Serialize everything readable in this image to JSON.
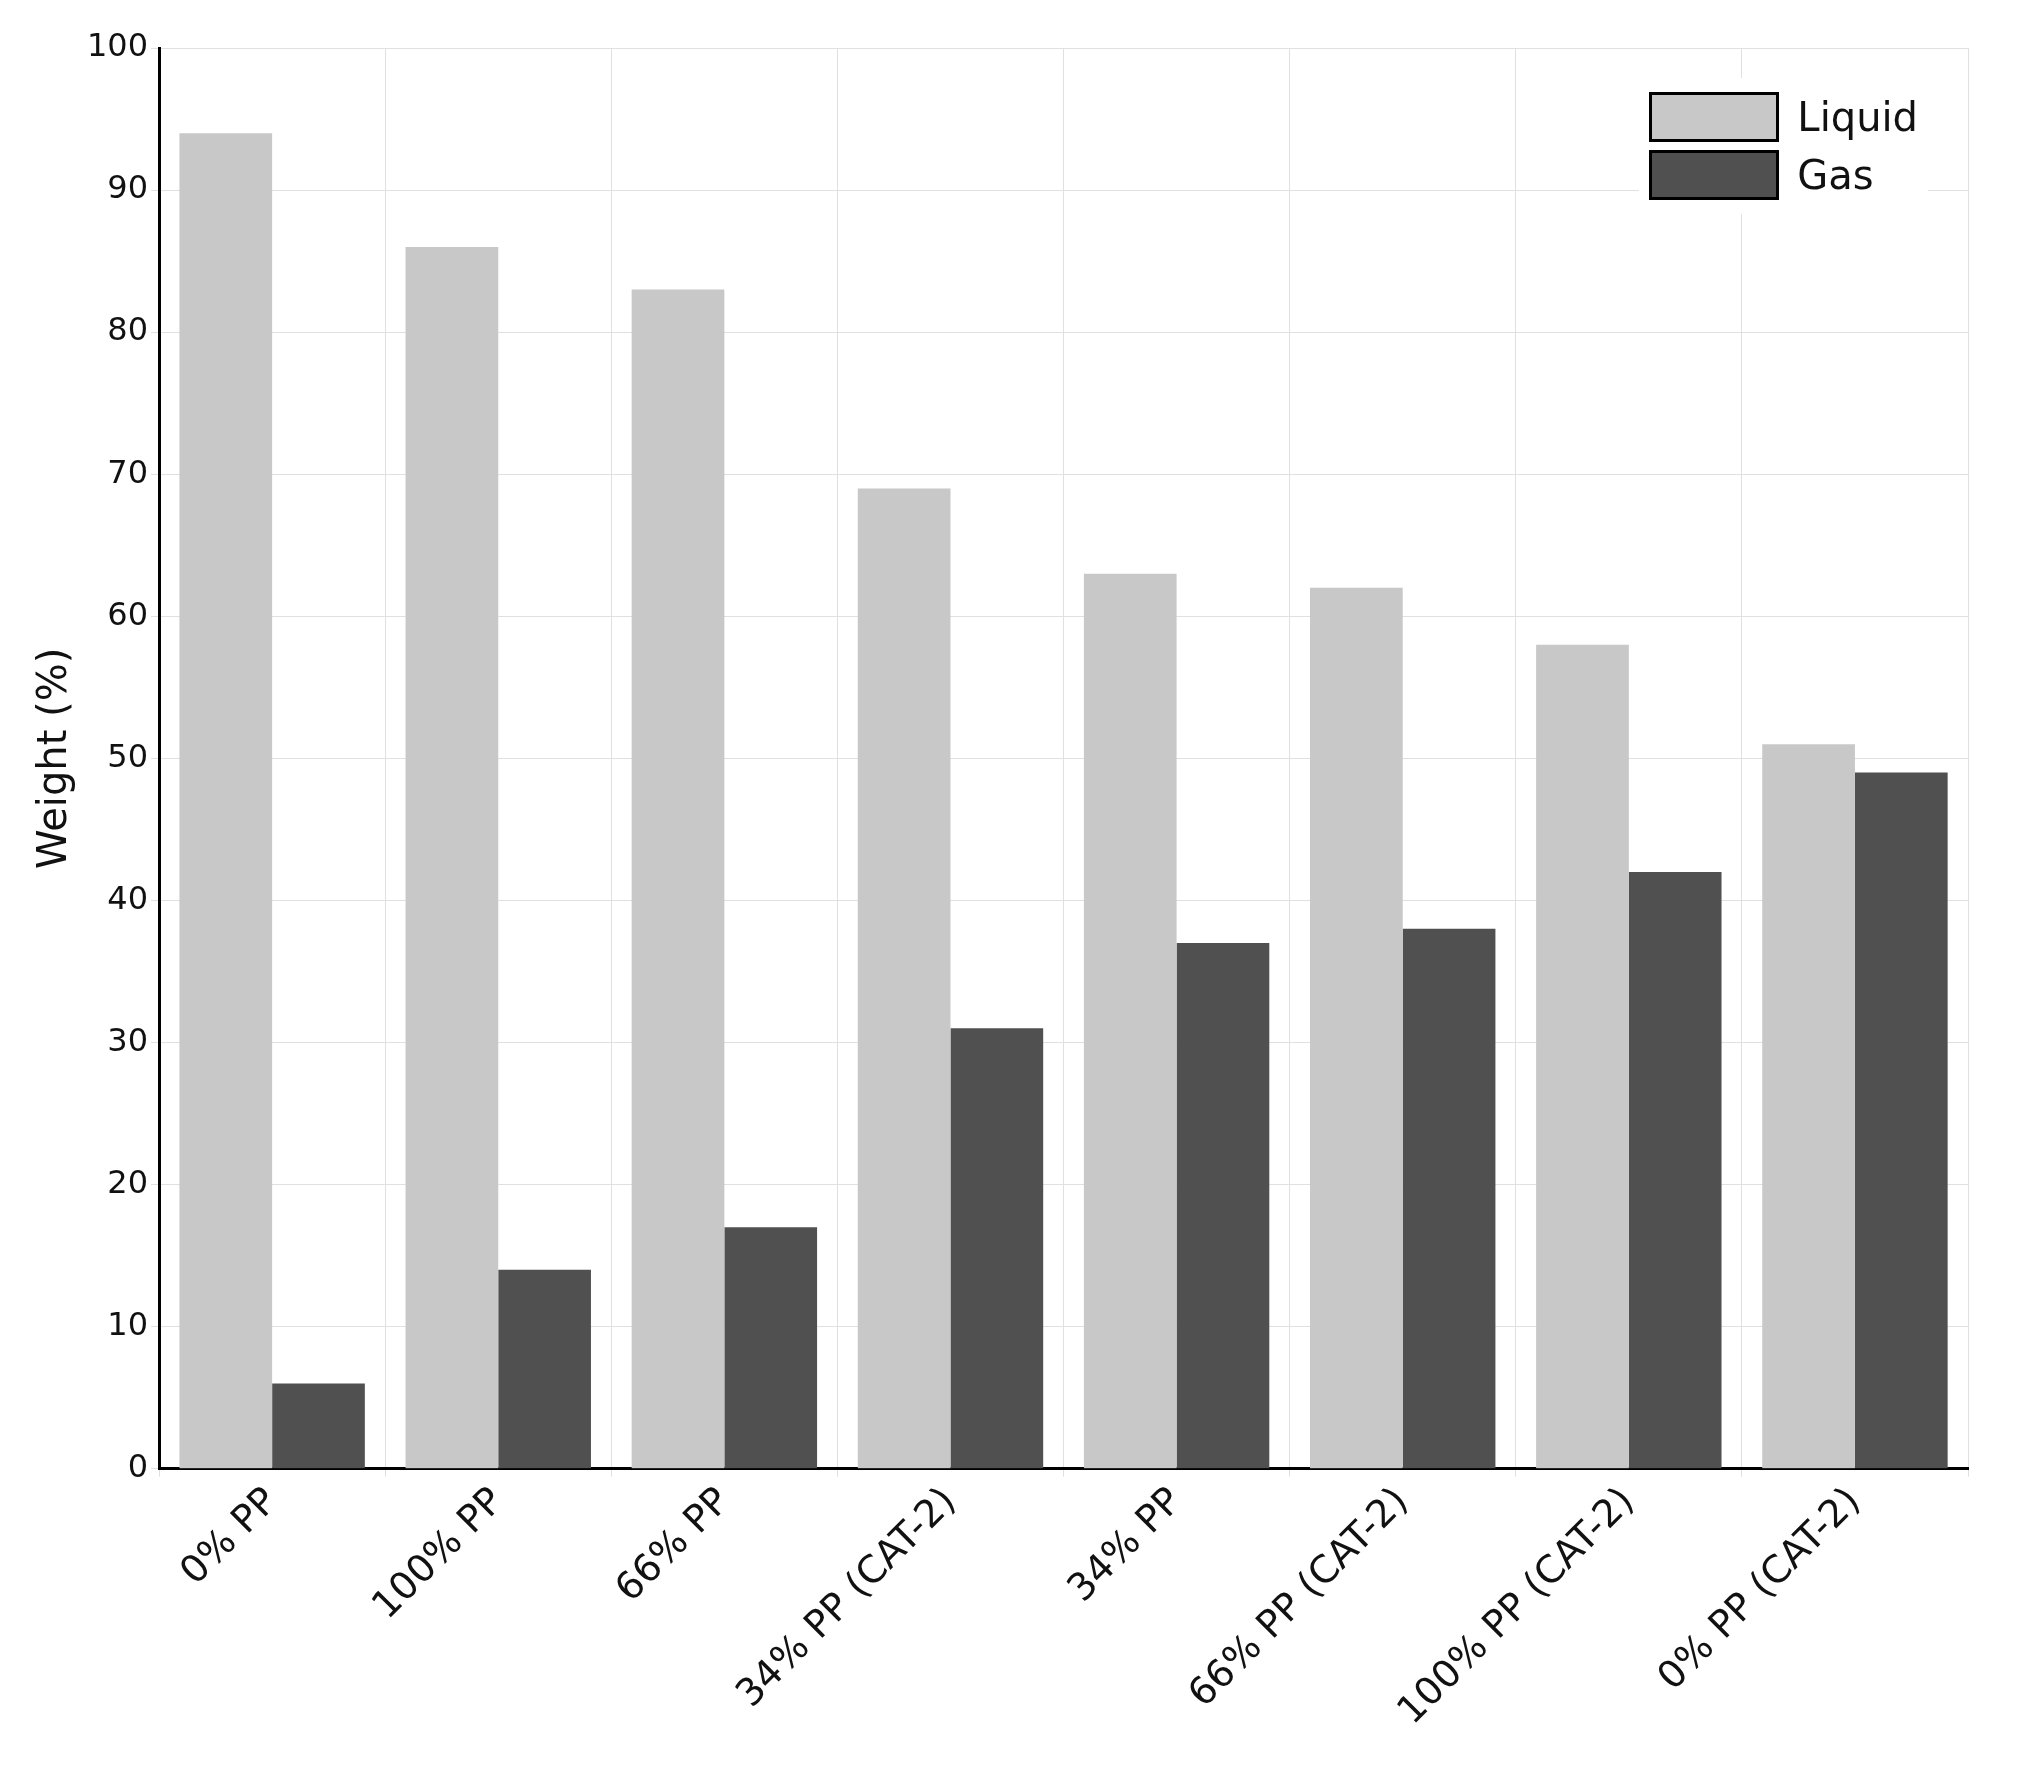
{
  "chart_data": {
    "type": "bar",
    "ylabel": "Weight (%)",
    "categories": [
      "0% PP",
      "100% PP",
      "66% PP",
      "34% PP (CAT-2)",
      "34% PP",
      "66% PP (CAT-2)",
      "100% PP (CAT-2)",
      "0% PP (CAT-2)"
    ],
    "series": [
      {
        "name": "Liquid",
        "color": "#c8c8c8",
        "values": [
          94,
          86,
          83,
          69,
          63,
          62,
          58,
          51
        ]
      },
      {
        "name": "Gas",
        "color": "#505050",
        "values": [
          6,
          14,
          17,
          31,
          37,
          38,
          42,
          49
        ]
      }
    ],
    "ylim": [
      0,
      100
    ],
    "yticks": [
      0,
      10,
      20,
      30,
      40,
      50,
      60,
      70,
      80,
      90,
      100
    ],
    "grid": true,
    "legend": "top right"
  }
}
